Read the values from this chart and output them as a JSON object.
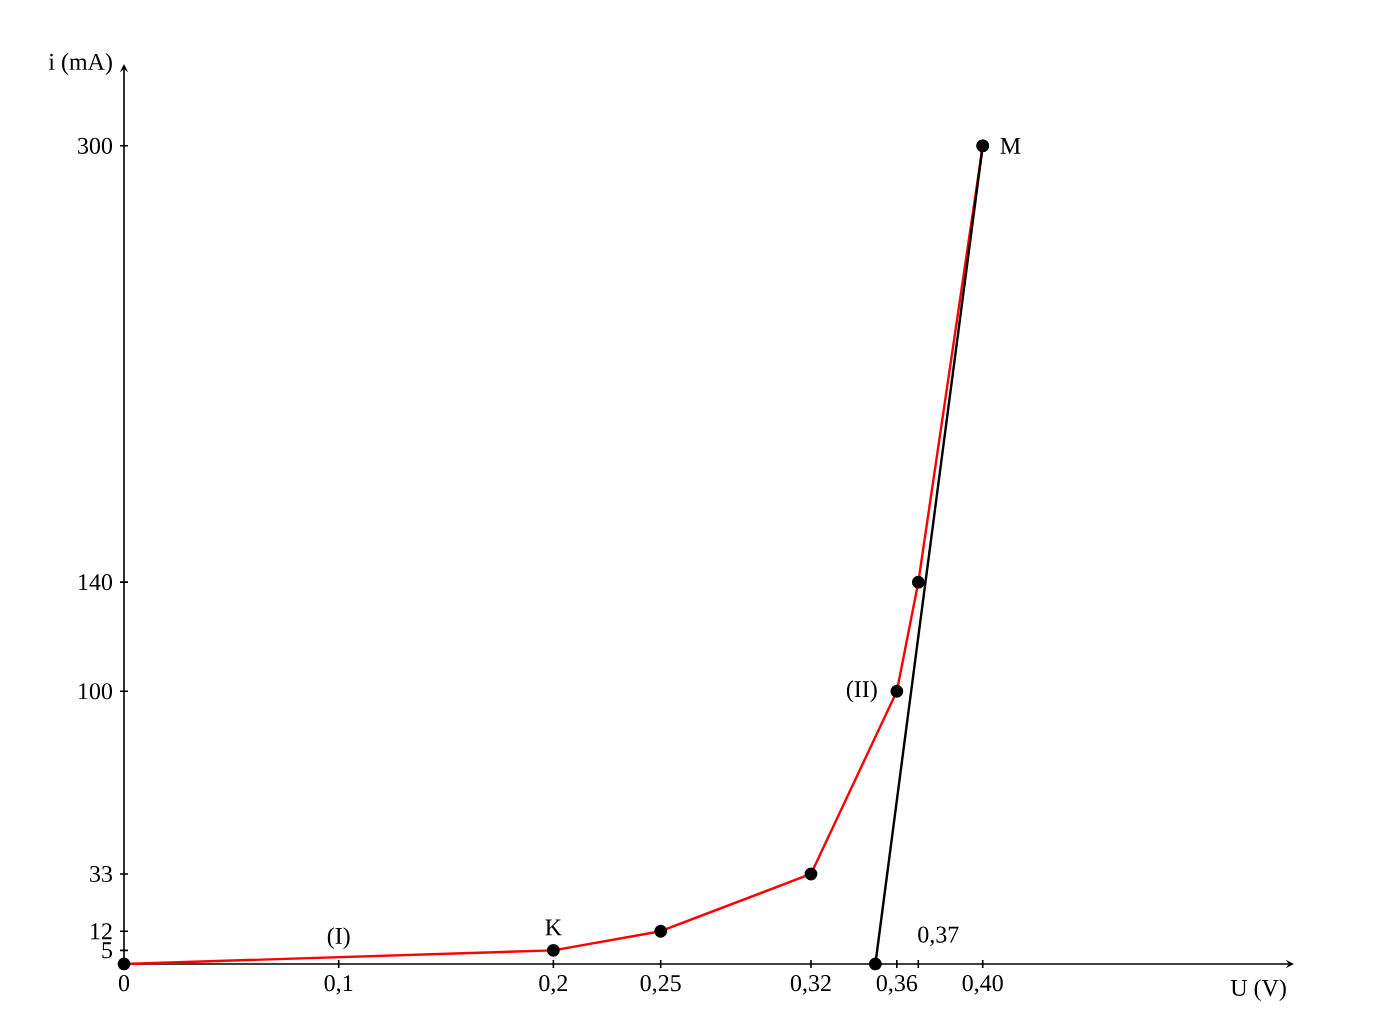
{
  "chart_data": {
    "type": "line",
    "xlabel": "U (V)",
    "ylabel": "i (mA)",
    "xlim": [
      0,
      0.545
    ],
    "ylim": [
      0,
      330
    ],
    "xticks": [
      {
        "value": 0,
        "label": "0"
      },
      {
        "value": 0.1,
        "label": "0,1"
      },
      {
        "value": 0.2,
        "label": "0,2"
      },
      {
        "value": 0.25,
        "label": "0,25"
      },
      {
        "value": 0.32,
        "label": "0,32"
      },
      {
        "value": 0.35,
        "label": null
      },
      {
        "value": 0.36,
        "label": "0,36"
      },
      {
        "value": 0.37,
        "label": null
      },
      {
        "value": 0.4,
        "label": "0,40"
      }
    ],
    "yticks": [
      5,
      12,
      33,
      100,
      140,
      300
    ],
    "series": [
      {
        "color": "#ff0000",
        "x": [
          0,
          0.2,
          0.25,
          0.32,
          0.36,
          0.37,
          0.4
        ],
        "values": [
          0,
          5,
          12,
          33,
          100,
          140,
          300
        ]
      },
      {
        "color": "#000000",
        "x": [
          0.35,
          0.4
        ],
        "values": [
          0,
          300
        ]
      }
    ],
    "annotations": [
      {
        "text": "(I)",
        "x": 0.1,
        "y": 0
      },
      {
        "text": "K",
        "x": 0.2,
        "y": 5
      },
      {
        "text": "(II)",
        "x": 0.36,
        "y": 100
      },
      {
        "text": "M",
        "x": 0.4,
        "y": 300
      },
      "0,37"
    ],
    "marker": "circle",
    "line_style": "solid",
    "grid": false
  }
}
